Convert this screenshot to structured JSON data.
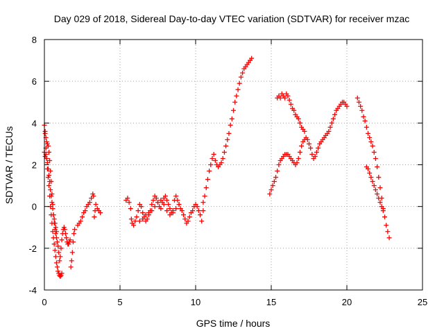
{
  "chart_data": {
    "type": "scatter",
    "title": "Day 029 of 2018, Sidereal Day-to-day VTEC variation (SDTVAR) for receiver mzac",
    "xlabel": "GPS time / hours",
    "ylabel": "SDTVAR / TECUs",
    "xlim": [
      0,
      25
    ],
    "ylim": [
      -4,
      8
    ],
    "xticks": [
      "0",
      "5",
      "10",
      "15",
      "20",
      "25"
    ],
    "yticks": [
      "-4",
      "-2",
      "0",
      "2",
      "4",
      "6",
      "8"
    ],
    "grid": true,
    "marker": "+",
    "color": "#ff0000",
    "series": [
      {
        "x": [
          0.0,
          0.05,
          0.1,
          0.15,
          0.2,
          0.25,
          0.3,
          0.35,
          0.4,
          0.45,
          0.5,
          0.55,
          0.6,
          0.65,
          0.7,
          0.75,
          0.8,
          0.85,
          0.9,
          0.95,
          1.0,
          1.05,
          1.1,
          1.15,
          1.2,
          1.25,
          1.3,
          1.35,
          1.4,
          1.45,
          1.5,
          1.55,
          1.6,
          1.65,
          1.7,
          1.75,
          1.8,
          1.85,
          1.9,
          1.95,
          2.0
        ],
        "y": [
          3.9,
          3.6,
          3.3,
          3.1,
          3.0,
          2.9,
          2.6,
          2.2,
          1.7,
          1.2,
          0.6,
          0.1,
          -0.4,
          -0.8,
          -1.1,
          -1.3,
          -1.5,
          -1.7,
          -1.9,
          -2.2,
          -2.6,
          -2.4,
          -2.0,
          -1.6,
          -1.3,
          -1.1,
          -1.0,
          -1.1,
          -1.3,
          -1.5,
          -1.7,
          -1.8,
          -1.8,
          -1.7,
          -1.6,
          -2.9,
          -2.6,
          -2.2,
          -1.7,
          -1.3,
          -1.1
        ]
      },
      {
        "x": [
          0.05,
          0.1,
          0.15,
          0.2,
          0.25,
          0.3,
          0.35,
          0.4,
          0.45,
          0.5,
          0.55,
          0.6,
          0.65,
          0.7,
          0.75,
          0.8,
          0.85,
          0.9,
          0.95,
          1.0,
          1.05,
          1.1,
          1.15
        ],
        "y": [
          3.5,
          2.8,
          2.3,
          1.8,
          1.4,
          1.0,
          0.5,
          0.0,
          -0.4,
          -0.8,
          -1.2,
          -1.5,
          -1.8,
          -2.1,
          -2.4,
          -2.7,
          -2.9,
          -3.1,
          -3.2,
          -3.3,
          -3.35,
          -3.3,
          -3.2
        ]
      },
      {
        "x": [
          0.0,
          0.05,
          0.1,
          0.15,
          0.2,
          0.25,
          0.3,
          0.35,
          0.4,
          0.45,
          0.5,
          0.55,
          0.6,
          0.65,
          0.7,
          0.75,
          0.8
        ],
        "y": [
          2.6,
          2.4,
          2.5,
          2.3,
          2.1,
          1.8,
          1.5,
          1.2,
          0.8,
          0.5,
          0.2,
          -0.1,
          -0.4,
          -0.6,
          -0.8,
          -1.0,
          -1.2
        ]
      },
      {
        "x": [
          2.2,
          2.3,
          2.4,
          2.5,
          2.6,
          2.7,
          2.8,
          2.9,
          3.0,
          3.1,
          3.2,
          3.25,
          3.3,
          3.35,
          3.4,
          3.5,
          3.6,
          3.7
        ],
        "y": [
          -0.9,
          -0.8,
          -0.7,
          -0.5,
          -0.3,
          -0.2,
          0.0,
          0.1,
          0.2,
          0.4,
          0.6,
          0.5,
          -0.5,
          -0.2,
          0.1,
          -0.1,
          -0.2,
          -0.3
        ]
      },
      {
        "x": [
          5.4,
          5.5,
          5.6,
          5.7,
          5.75,
          5.8,
          5.9,
          6.0,
          6.1,
          6.2,
          6.3,
          6.4,
          6.5,
          6.6,
          6.7,
          6.8,
          6.9,
          7.0,
          7.1,
          7.2,
          7.3,
          7.4,
          7.5,
          7.6,
          7.7,
          7.8,
          7.9,
          8.0,
          8.1,
          8.2,
          8.3,
          8.4,
          8.5,
          8.6,
          8.7,
          8.8,
          8.9,
          9.0,
          9.1,
          9.2,
          9.3,
          9.4,
          9.5,
          9.6,
          9.7,
          9.8,
          9.9,
          10.0,
          10.1,
          10.2,
          10.3,
          10.4,
          10.5
        ],
        "y": [
          0.3,
          0.4,
          0.2,
          -0.1,
          -0.6,
          -0.8,
          -0.9,
          -0.7,
          -0.5,
          -0.2,
          0.1,
          0.0,
          -0.3,
          -0.5,
          -0.7,
          -0.6,
          -0.4,
          -0.2,
          0.1,
          0.3,
          0.5,
          0.4,
          0.2,
          0.0,
          -0.1,
          0.2,
          0.4,
          0.5,
          0.3,
          0.1,
          -0.1,
          -0.3,
          -0.2,
          0.3,
          0.5,
          0.3,
          0.1,
          -0.1,
          -0.2,
          -0.4,
          -0.6,
          -0.8,
          -0.7,
          -0.5,
          -0.3,
          -0.2,
          0.0,
          0.1,
          0.0,
          -0.2,
          -0.4,
          -0.7,
          -0.2
        ]
      },
      {
        "x": [
          6.3,
          6.5,
          6.7,
          6.9,
          7.1,
          7.3,
          7.5,
          7.7,
          7.9,
          8.1,
          8.3,
          8.5,
          8.7,
          8.9
        ],
        "y": [
          -0.7,
          -0.6,
          -0.4,
          -0.3,
          -0.2,
          0.0,
          0.2,
          0.3,
          0.1,
          -0.2,
          -0.4,
          -0.3,
          -0.1,
          0.1
        ]
      },
      {
        "x": [
          10.5,
          10.6,
          10.7,
          10.8,
          10.9,
          11.0,
          11.1,
          11.2,
          11.3,
          11.4,
          11.5,
          11.6,
          11.7,
          11.8,
          11.9,
          12.0,
          12.1,
          12.2,
          12.3,
          12.4,
          12.5,
          12.6,
          12.7,
          12.8,
          12.9,
          13.0,
          13.1,
          13.2,
          13.3,
          13.4,
          13.5,
          13.6,
          13.7
        ],
        "y": [
          0.2,
          0.5,
          0.9,
          1.3,
          1.7,
          2.0,
          2.3,
          2.5,
          2.2,
          2.0,
          1.9,
          2.0,
          2.1,
          2.3,
          2.6,
          2.9,
          3.2,
          3.5,
          3.9,
          4.2,
          4.6,
          5.0,
          5.3,
          5.6,
          5.9,
          6.2,
          6.4,
          6.6,
          6.7,
          6.8,
          6.9,
          7.0,
          7.1
        ]
      },
      {
        "x": [
          14.9,
          15.0,
          15.1,
          15.2,
          15.3,
          15.4,
          15.5,
          15.6,
          15.7,
          15.8,
          15.9,
          16.0,
          16.1,
          16.2,
          16.3,
          16.4,
          16.5,
          16.6,
          16.7,
          16.8,
          16.9,
          17.0,
          17.1,
          17.2,
          17.3,
          17.4,
          17.5,
          17.6,
          17.7,
          17.8,
          17.9,
          18.0,
          18.1,
          18.2,
          18.3,
          18.4,
          18.5,
          18.6,
          18.7,
          18.8,
          18.9,
          19.0,
          19.1,
          19.2,
          19.3,
          19.4,
          19.5,
          19.6,
          19.7,
          19.8,
          19.9,
          20.0
        ],
        "y": [
          0.6,
          0.8,
          1.0,
          1.2,
          1.4,
          1.7,
          2.0,
          2.2,
          2.3,
          2.4,
          2.5,
          2.5,
          2.5,
          2.4,
          2.3,
          2.2,
          2.1,
          2.0,
          2.1,
          2.3,
          2.6,
          2.9,
          3.1,
          3.2,
          3.3,
          3.2,
          3.0,
          2.8,
          2.5,
          2.3,
          2.4,
          2.6,
          2.8,
          3.0,
          3.1,
          3.2,
          3.3,
          3.4,
          3.5,
          3.6,
          3.8,
          4.0,
          4.2,
          4.4,
          4.6,
          4.7,
          4.8,
          4.9,
          5.0,
          5.0,
          4.9,
          4.8
        ]
      },
      {
        "x": [
          15.4,
          15.5,
          15.6,
          15.7,
          15.8,
          15.9,
          16.0,
          16.1,
          16.2,
          16.3,
          16.4,
          16.5,
          16.6,
          16.7,
          16.8,
          16.9,
          17.0,
          17.1,
          17.2
        ],
        "y": [
          5.2,
          5.3,
          5.2,
          5.4,
          5.3,
          5.2,
          5.4,
          5.3,
          5.1,
          4.9,
          4.7,
          4.6,
          4.4,
          4.3,
          4.2,
          4.0,
          3.8,
          3.7,
          3.6
        ]
      },
      {
        "x": [
          20.7,
          20.8,
          20.9,
          21.0,
          21.1,
          21.2,
          21.3,
          21.4,
          21.5,
          21.6,
          21.7,
          21.8,
          21.9,
          22.0,
          22.1,
          22.2,
          22.3,
          22.4,
          22.5,
          22.6,
          22.7,
          22.8
        ],
        "y": [
          5.2,
          5.0,
          4.8,
          4.6,
          4.3,
          4.1,
          3.8,
          3.5,
          3.3,
          3.1,
          2.9,
          2.6,
          2.3,
          1.9,
          1.4,
          0.9,
          0.4,
          -0.1,
          -0.5,
          -0.9,
          -1.2,
          -1.5
        ]
      },
      {
        "x": [
          21.3,
          21.4,
          21.5,
          21.6,
          21.7,
          21.8,
          21.9,
          22.0,
          22.1,
          22.2,
          22.3,
          22.4
        ],
        "y": [
          1.9,
          1.8,
          1.6,
          1.4,
          1.2,
          1.0,
          0.8,
          0.6,
          0.4,
          0.2,
          0.0,
          -0.2
        ]
      }
    ]
  }
}
